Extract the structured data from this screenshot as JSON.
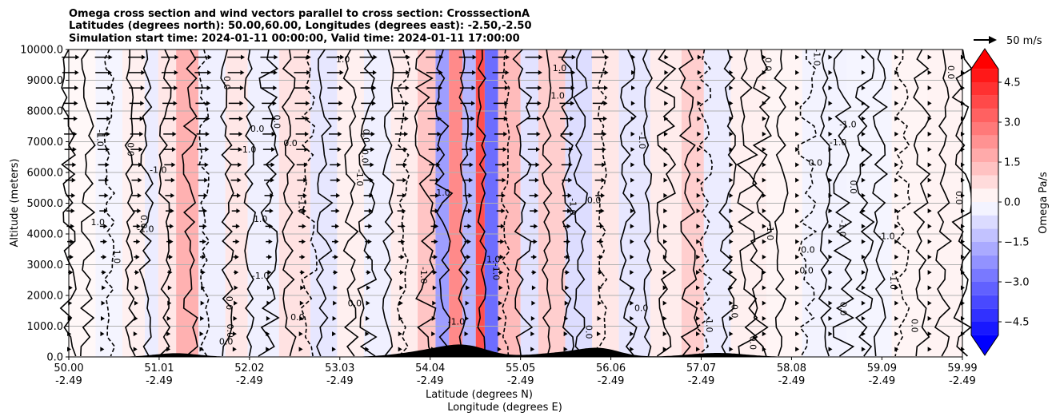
{
  "chart_data": {
    "type": "heatmap",
    "title_lines": [
      "Omega cross section and wind vectors parallel to cross section: CrosssectionA",
      "Latitudes (degrees north): 50.00,60.00, Longitudes (degrees east): -2.50,-2.50",
      "Simulation start time: 2024-01-11 00:00:00, Valid time: 2024-01-11 17:00:00"
    ],
    "xlabel_lat": "Latitude (degrees N)",
    "xlabel_lon": "Longitude (degrees E)",
    "ylabel": "Altitude (meters)",
    "xlim": [
      50.0,
      59.99
    ],
    "ylim": [
      0,
      10000
    ],
    "x_ticks_lat": [
      "50.00",
      "51.01",
      "52.02",
      "53.03",
      "54.04",
      "55.05",
      "56.06",
      "57.07",
      "58.08",
      "59.09",
      "59.99"
    ],
    "x_ticks_lon": [
      "-2.49",
      "-2.49",
      "-2.49",
      "-2.49",
      "-2.49",
      "-2.49",
      "-2.49",
      "-2.49",
      "-2.49",
      "-2.49",
      "-2.49"
    ],
    "y_ticks": [
      "0.0",
      "1000.0",
      "2000.0",
      "3000.0",
      "4000.0",
      "5000.0",
      "6000.0",
      "7000.0",
      "8000.0",
      "9000.0",
      "10000.0"
    ],
    "colorbar": {
      "label": "Omega Pa/s",
      "range": [
        -5.25,
        5.25
      ],
      "ticks": [
        "−4.5",
        "−3.0",
        "−1.5",
        "0.0",
        "1.5",
        "3.0",
        "4.5"
      ],
      "tick_values": [
        -4.5,
        -3.0,
        -1.5,
        0.0,
        1.5,
        3.0,
        4.5
      ],
      "step": 0.5,
      "colormap": "bwr"
    },
    "reference_vector": {
      "label": "50 m/s",
      "value": 50
    },
    "omega_bands": [
      {
        "lat": 50.0,
        "omega": 0.15
      },
      {
        "lat": 50.3,
        "omega": -0.2
      },
      {
        "lat": 50.6,
        "omega": 0.3
      },
      {
        "lat": 50.85,
        "omega": -0.4
      },
      {
        "lat": 51.0,
        "omega": 0.5
      },
      {
        "lat": 51.2,
        "omega": 1.6
      },
      {
        "lat": 51.45,
        "omega": -0.3
      },
      {
        "lat": 51.75,
        "omega": 0.5
      },
      {
        "lat": 52.0,
        "omega": -0.3
      },
      {
        "lat": 52.35,
        "omega": 0.6
      },
      {
        "lat": 52.7,
        "omega": -0.5
      },
      {
        "lat": 53.0,
        "omega": 0.3
      },
      {
        "lat": 53.3,
        "omega": -0.3
      },
      {
        "lat": 53.6,
        "omega": 0.4
      },
      {
        "lat": 53.9,
        "omega": 1.2
      },
      {
        "lat": 54.1,
        "omega": -2.0
      },
      {
        "lat": 54.25,
        "omega": 2.4
      },
      {
        "lat": 54.4,
        "omega": -1.5
      },
      {
        "lat": 54.55,
        "omega": 3.6
      },
      {
        "lat": 54.65,
        "omega": -3.0
      },
      {
        "lat": 54.8,
        "omega": 1.4
      },
      {
        "lat": 55.05,
        "omega": -0.6
      },
      {
        "lat": 55.25,
        "omega": 1.0
      },
      {
        "lat": 55.55,
        "omega": -0.7
      },
      {
        "lat": 55.85,
        "omega": 0.5
      },
      {
        "lat": 56.15,
        "omega": -0.5
      },
      {
        "lat": 56.5,
        "omega": 0.4
      },
      {
        "lat": 56.85,
        "omega": 1.0
      },
      {
        "lat": 57.1,
        "omega": -0.4
      },
      {
        "lat": 57.4,
        "omega": 0.3
      },
      {
        "lat": 57.8,
        "omega": 0.2
      },
      {
        "lat": 58.2,
        "omega": -0.25
      },
      {
        "lat": 58.7,
        "omega": -0.2
      },
      {
        "lat": 59.2,
        "omega": 0.2
      },
      {
        "lat": 59.6,
        "omega": 0.25
      }
    ],
    "contour_labels": [
      "0.0",
      "-1.0",
      "1.0",
      "-3.0",
      "3.0"
    ],
    "wind_vector_summary": "mostly southerly (northward) flow, strongest aloft south of 56N, near-calm north of 57N",
    "terrain": "orography bumps near 51.2N, 54.0-54.7N, 55.5-56.1N and 57.0-57.5N"
  }
}
